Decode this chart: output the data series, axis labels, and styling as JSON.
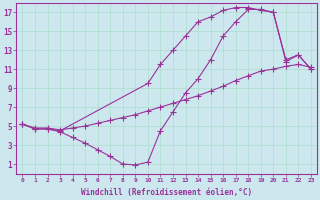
{
  "background_color": "#cce8ee",
  "line_color": "#993399",
  "marker": "+",
  "markersize": 4,
  "linewidth": 0.8,
  "xlim": [
    -0.5,
    23.5
  ],
  "ylim": [
    0,
    18
  ],
  "xticks": [
    0,
    1,
    2,
    3,
    4,
    5,
    6,
    7,
    8,
    9,
    10,
    11,
    12,
    13,
    14,
    15,
    16,
    17,
    18,
    19,
    20,
    21,
    22,
    23
  ],
  "yticks": [
    1,
    3,
    5,
    7,
    9,
    11,
    13,
    15,
    17
  ],
  "xlabel": "Windchill (Refroidissement éolien,°C)",
  "grid_color": "#aaddcc",
  "lines": [
    {
      "x": [
        0,
        1,
        2,
        3,
        10,
        11,
        12,
        13,
        14,
        15,
        16,
        17,
        18,
        19,
        20,
        21,
        22,
        23
      ],
      "y": [
        5.2,
        4.7,
        4.7,
        4.5,
        9.5,
        11.5,
        13.0,
        14.5,
        16.0,
        16.5,
        17.2,
        17.5,
        17.5,
        17.2,
        17.0,
        12.0,
        12.5,
        11.0
      ]
    },
    {
      "x": [
        0,
        1,
        2,
        3,
        4,
        5,
        6,
        7,
        8,
        9,
        10,
        11,
        12,
        13,
        14,
        15,
        16,
        17,
        18,
        19,
        20,
        21,
        22,
        23
      ],
      "y": [
        5.2,
        4.7,
        4.7,
        4.4,
        3.8,
        3.2,
        2.5,
        1.8,
        1.0,
        0.9,
        1.2,
        4.5,
        6.5,
        8.5,
        10.0,
        12.0,
        14.5,
        16.0,
        17.3,
        17.3,
        17.0,
        11.8,
        12.5,
        11.0
      ]
    },
    {
      "x": [
        0,
        1,
        2,
        3,
        4,
        5,
        6,
        7,
        8,
        9,
        10,
        11,
        12,
        13,
        14,
        15,
        16,
        17,
        18,
        19,
        20,
        21,
        22,
        23
      ],
      "y": [
        5.2,
        4.8,
        4.8,
        4.6,
        4.8,
        5.0,
        5.3,
        5.6,
        5.9,
        6.2,
        6.6,
        7.0,
        7.4,
        7.8,
        8.2,
        8.7,
        9.2,
        9.8,
        10.3,
        10.8,
        11.0,
        11.3,
        11.5,
        11.2
      ]
    }
  ]
}
